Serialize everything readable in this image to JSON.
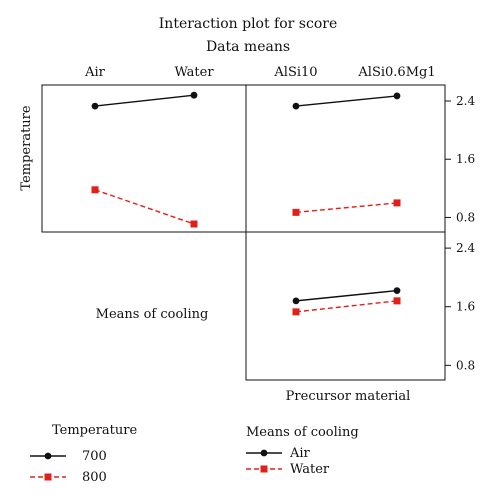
{
  "chart_data": {
    "type": "line",
    "title": "Interaction plot for score",
    "subtitle": "Data means",
    "y_ticks": [
      "2.4",
      "1.6",
      "0.8"
    ],
    "y_tick_values": [
      2.4,
      1.6,
      0.8
    ],
    "ylim": [
      0.6,
      2.62
    ],
    "factors": [
      {
        "name": "Temperature",
        "levels": [
          "700",
          "800"
        ]
      },
      {
        "name": "Means of cooling",
        "levels": [
          "Air",
          "Water"
        ]
      },
      {
        "name": "Precursor material",
        "levels": [
          "AlSi10",
          "AlSi0.6Mg1"
        ]
      }
    ],
    "panels": [
      {
        "row": "Temperature",
        "column": "Means of cooling",
        "x_levels": [
          "Air",
          "Water"
        ],
        "series": [
          {
            "name": "700",
            "values": [
              2.33,
              2.48
            ]
          },
          {
            "name": "800",
            "values": [
              1.18,
              0.71
            ]
          }
        ]
      },
      {
        "row": "Temperature",
        "column": "Precursor material",
        "x_levels": [
          "AlSi10",
          "AlSi0.6Mg1"
        ],
        "series": [
          {
            "name": "700",
            "values": [
              2.33,
              2.47
            ]
          },
          {
            "name": "800",
            "values": [
              0.87,
              1.0
            ]
          }
        ]
      },
      {
        "row": "Means of cooling",
        "column": "Precursor material",
        "x_levels": [
          "AlSi10",
          "AlSi0.6Mg1"
        ],
        "series": [
          {
            "name": "Air",
            "values": [
              1.68,
              1.82
            ]
          },
          {
            "name": "Water",
            "values": [
              1.53,
              1.68
            ]
          }
        ]
      }
    ],
    "legends": [
      {
        "title": "Temperature",
        "entries": [
          "700",
          "800"
        ]
      },
      {
        "title": "Means of cooling",
        "entries": [
          "Air",
          "Water"
        ]
      }
    ],
    "series_styles": {
      "level1": {
        "color": "#111111",
        "marker": "circle",
        "dash": "solid"
      },
      "level2": {
        "color": "#e0201b",
        "marker": "square",
        "dash": "dashed"
      }
    }
  }
}
